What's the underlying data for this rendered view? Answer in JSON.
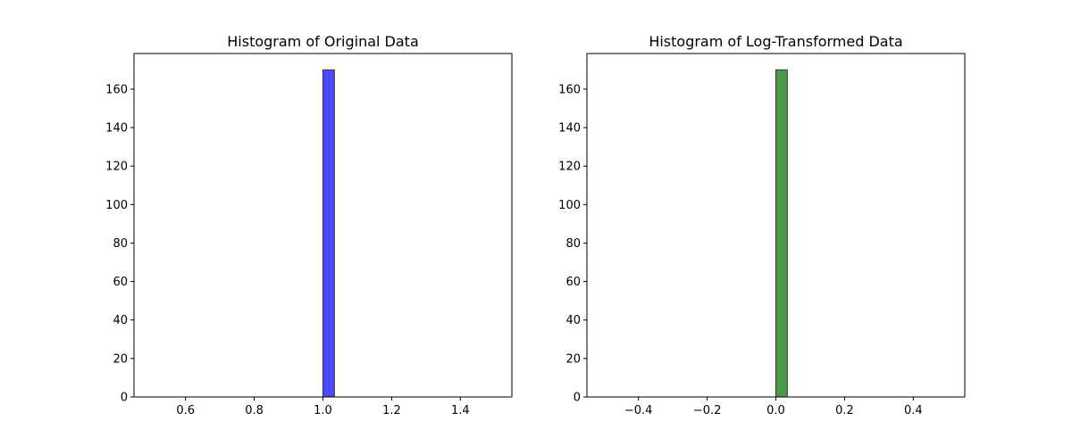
{
  "chart_data": [
    {
      "type": "bar",
      "title": "Histogram of Original Data",
      "xlabel": "",
      "ylabel": "",
      "xlim": [
        0.45,
        1.55
      ],
      "ylim": [
        0,
        178.5
      ],
      "xticks": [
        0.6,
        0.8,
        1.0,
        1.2,
        1.4
      ],
      "xtick_labels": [
        "0.6",
        "0.8",
        "1.0",
        "1.2",
        "1.4"
      ],
      "yticks": [
        0,
        20,
        40,
        60,
        80,
        100,
        120,
        140,
        160
      ],
      "ytick_labels": [
        "0",
        "20",
        "40",
        "60",
        "80",
        "100",
        "120",
        "140",
        "160"
      ],
      "bin_start": 0.5,
      "bin_end": 1.5,
      "bin_count": 30,
      "values": [
        0,
        0,
        0,
        0,
        0,
        0,
        0,
        0,
        0,
        0,
        0,
        0,
        0,
        0,
        0,
        170,
        0,
        0,
        0,
        0,
        0,
        0,
        0,
        0,
        0,
        0,
        0,
        0,
        0,
        0
      ],
      "bar_color": "#4a4aff",
      "edge_color": "#333333",
      "grid": false,
      "legend": false
    },
    {
      "type": "bar",
      "title": "Histogram of Log-Transformed Data",
      "xlabel": "",
      "ylabel": "",
      "xlim": [
        -0.55,
        0.55
      ],
      "ylim": [
        0,
        178.5
      ],
      "xticks": [
        -0.4,
        -0.2,
        0.0,
        0.2,
        0.4
      ],
      "xtick_labels": [
        "−0.4",
        "−0.2",
        "0.0",
        "0.2",
        "0.4"
      ],
      "yticks": [
        0,
        20,
        40,
        60,
        80,
        100,
        120,
        140,
        160
      ],
      "ytick_labels": [
        "0",
        "20",
        "40",
        "60",
        "80",
        "100",
        "120",
        "140",
        "160"
      ],
      "bin_start": -0.5,
      "bin_end": 0.5,
      "bin_count": 30,
      "values": [
        0,
        0,
        0,
        0,
        0,
        0,
        0,
        0,
        0,
        0,
        0,
        0,
        0,
        0,
        0,
        170,
        0,
        0,
        0,
        0,
        0,
        0,
        0,
        0,
        0,
        0,
        0,
        0,
        0,
        0
      ],
      "bar_color": "#4a9a4a",
      "edge_color": "#333333",
      "grid": false,
      "legend": false
    }
  ]
}
